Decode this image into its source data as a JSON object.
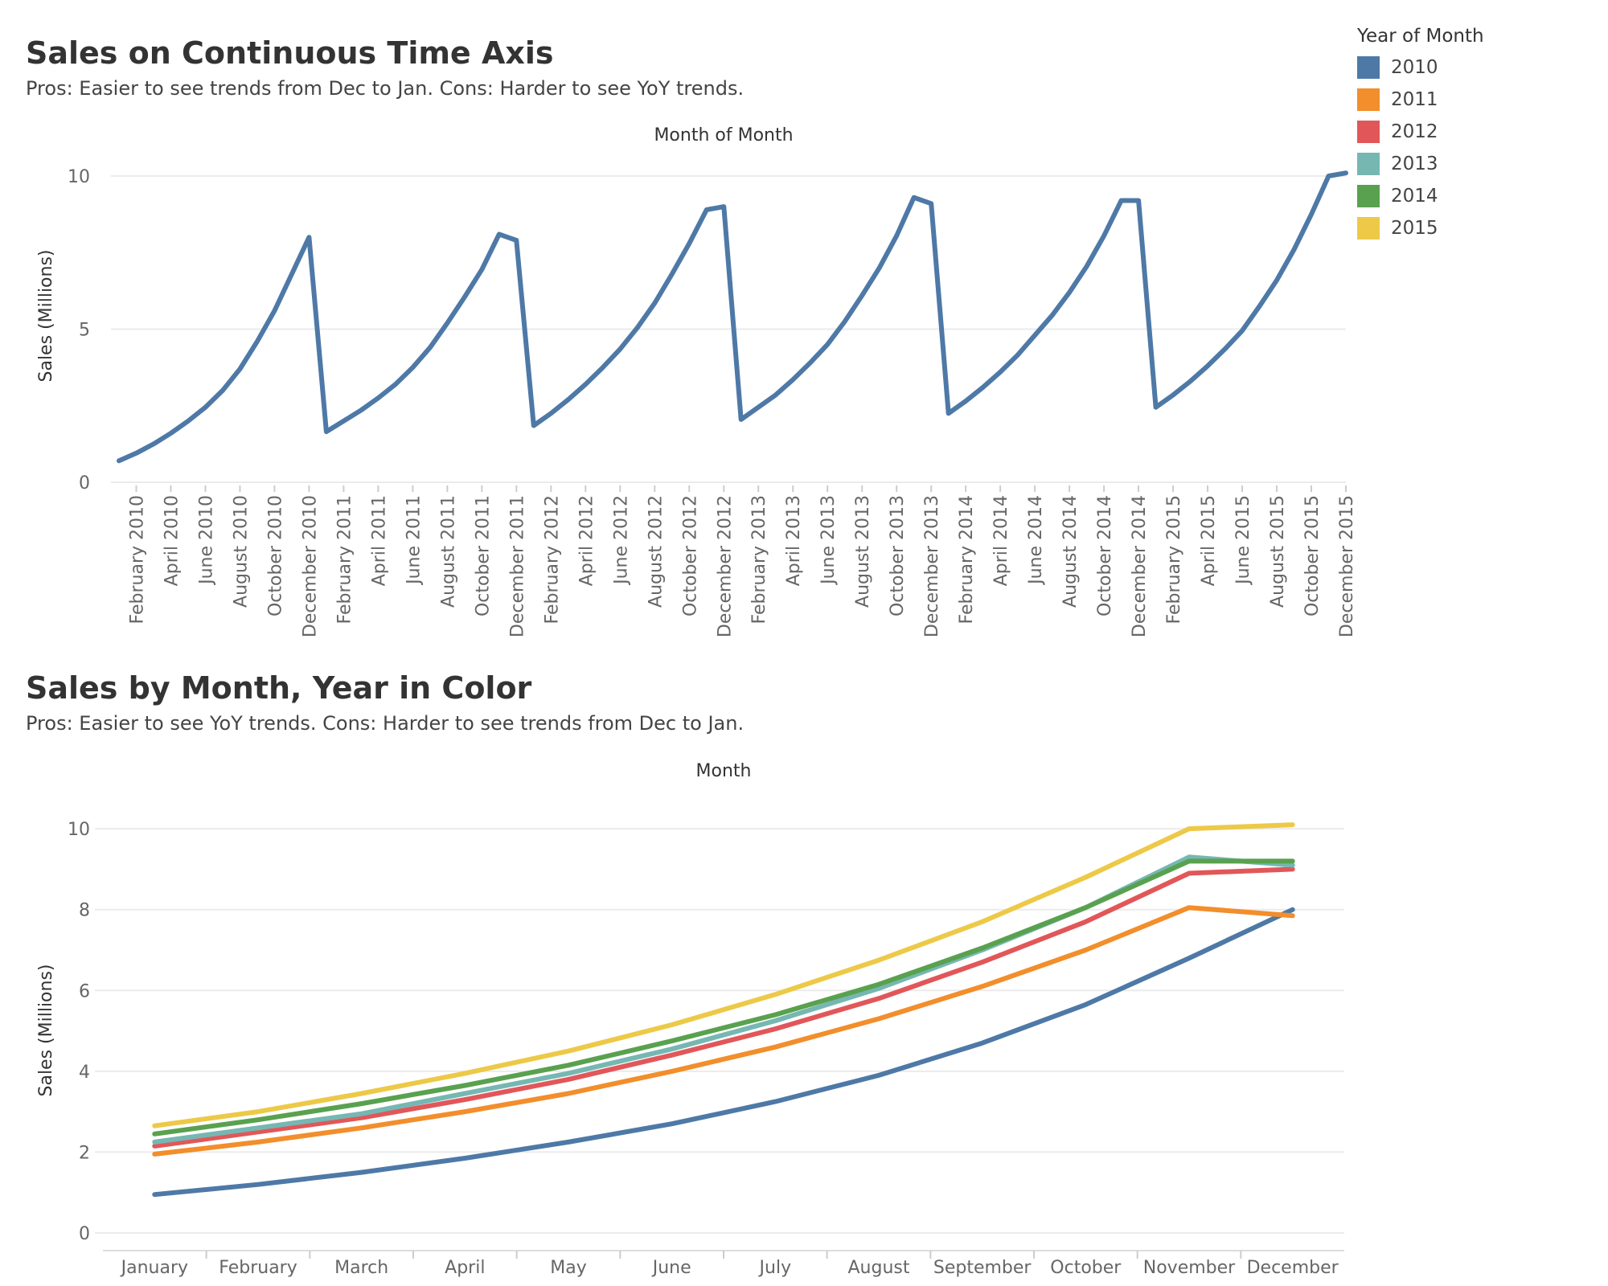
{
  "legend": {
    "title": "Year of Month",
    "items": [
      {
        "label": "2010",
        "color": "#4e79a7"
      },
      {
        "label": "2011",
        "color": "#f28e2b"
      },
      {
        "label": "2012",
        "color": "#e15759"
      },
      {
        "label": "2013",
        "color": "#76b7b2"
      },
      {
        "label": "2014",
        "color": "#59a14f"
      },
      {
        "label": "2015",
        "color": "#edc948"
      }
    ]
  },
  "chart_data": [
    {
      "type": "line",
      "title": "Sales on Continuous Time Axis",
      "subtitle": "Pros: Easier to see trends from Dec to Jan. Cons: Harder to see YoY trends.",
      "xlabel": "Month of Month",
      "ylabel": "Sales (Millions)",
      "ylim": [
        0,
        10.5
      ],
      "yticks": [
        0,
        5,
        10
      ],
      "xtick_labels": [
        "February 2010",
        "April 2010",
        "June 2010",
        "August 2010",
        "October 2010",
        "December 2010",
        "February 2011",
        "April 2011",
        "June 2011",
        "August 2011",
        "October 2011",
        "December 2011",
        "February 2012",
        "April 2012",
        "June 2012",
        "August 2012",
        "October 2012",
        "December 2012",
        "February 2013",
        "April 2013",
        "June 2013",
        "August 2013",
        "October 2013",
        "December 2013",
        "February 2014",
        "April 2014",
        "June 2014",
        "August 2014",
        "October 2014",
        "December 2014",
        "February 2015",
        "April 2015",
        "June 2015",
        "August 2015",
        "October 2015",
        "December 2015"
      ],
      "series": [
        {
          "name": "Sales",
          "color": "#4e79a7",
          "values": [
            0.7,
            0.95,
            1.25,
            1.6,
            2.0,
            2.45,
            3.0,
            3.7,
            4.6,
            5.6,
            6.8,
            8.0,
            1.65,
            2.0,
            2.35,
            2.75,
            3.2,
            3.75,
            4.4,
            5.2,
            6.05,
            6.95,
            8.1,
            7.9,
            1.85,
            2.25,
            2.7,
            3.2,
            3.75,
            4.35,
            5.05,
            5.85,
            6.8,
            7.8,
            8.9,
            9.0,
            2.05,
            2.45,
            2.85,
            3.35,
            3.9,
            4.5,
            5.25,
            6.1,
            7.0,
            8.05,
            9.3,
            9.1,
            2.25,
            2.65,
            3.1,
            3.6,
            4.15,
            4.8,
            5.45,
            6.2,
            7.05,
            8.05,
            9.2,
            9.2,
            2.45,
            2.85,
            3.3,
            3.8,
            4.35,
            4.95,
            5.75,
            6.6,
            7.6,
            8.75,
            10.0,
            10.1
          ]
        }
      ]
    },
    {
      "type": "line",
      "title": "Sales by Month, Year in Color",
      "subtitle": "Pros: Easier to see YoY trends. Cons: Harder to see trends from Dec to Jan.",
      "xlabel": "Month",
      "ylabel": "Sales (Millions)",
      "ylim": [
        0,
        10.5
      ],
      "yticks": [
        0,
        2,
        4,
        6,
        8,
        10
      ],
      "categories": [
        "January",
        "February",
        "March",
        "April",
        "May",
        "June",
        "July",
        "August",
        "September",
        "October",
        "November",
        "December"
      ],
      "series": [
        {
          "name": "2010",
          "color": "#4e79a7",
          "values": [
            0.95,
            1.2,
            1.5,
            1.85,
            2.25,
            2.7,
            3.25,
            3.9,
            4.7,
            5.65,
            6.8,
            8.0
          ]
        },
        {
          "name": "2011",
          "color": "#f28e2b",
          "values": [
            1.95,
            2.25,
            2.6,
            3.0,
            3.45,
            4.0,
            4.6,
            5.3,
            6.1,
            7.0,
            8.05,
            7.85
          ]
        },
        {
          "name": "2012",
          "color": "#e15759",
          "values": [
            2.15,
            2.5,
            2.85,
            3.3,
            3.8,
            4.4,
            5.05,
            5.8,
            6.7,
            7.7,
            8.9,
            9.0
          ]
        },
        {
          "name": "2013",
          "color": "#76b7b2",
          "values": [
            2.25,
            2.6,
            2.95,
            3.45,
            3.95,
            4.55,
            5.25,
            6.05,
            7.0,
            8.05,
            9.3,
            9.1
          ]
        },
        {
          "name": "2014",
          "color": "#59a14f",
          "values": [
            2.45,
            2.8,
            3.2,
            3.65,
            4.15,
            4.75,
            5.4,
            6.15,
            7.05,
            8.05,
            9.2,
            9.2
          ]
        },
        {
          "name": "2015",
          "color": "#edc948",
          "values": [
            2.65,
            3.0,
            3.45,
            3.95,
            4.5,
            5.15,
            5.9,
            6.75,
            7.7,
            8.8,
            10.0,
            10.1
          ]
        }
      ]
    }
  ]
}
